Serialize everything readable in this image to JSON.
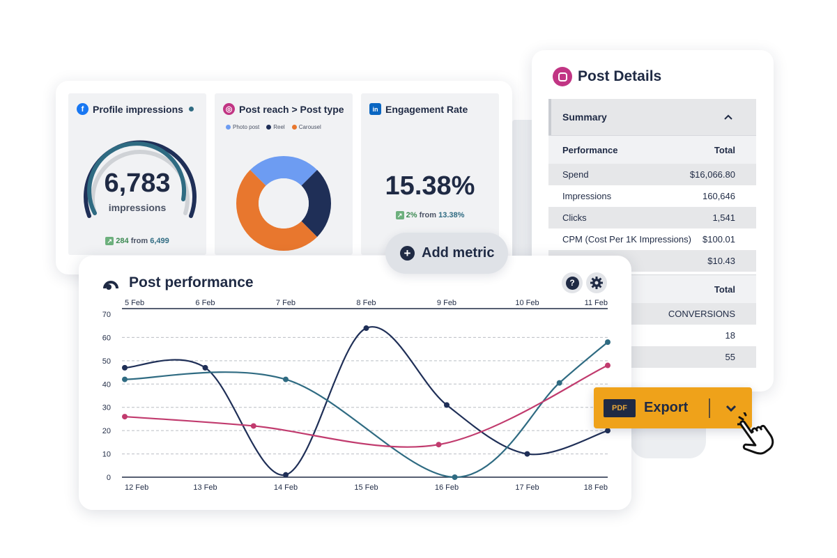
{
  "metrics": {
    "profile": {
      "title": "Profile impressions",
      "icon": "facebook-icon",
      "value": "6,783",
      "unit": "impressions",
      "delta": "284",
      "delta_from": "from",
      "prev": "6,499"
    },
    "reach": {
      "title": "Post reach > Post type",
      "icon": "instagram-icon",
      "legend": [
        "Photo post",
        "Reel",
        "Carousel"
      ],
      "colors": [
        "#6d9cf2",
        "#1f2f57",
        "#e8772e"
      ],
      "shares": [
        0.25,
        0.25,
        0.5
      ]
    },
    "engagement": {
      "title": "Engagement Rate",
      "icon": "linkedin-icon",
      "value": "15.38%",
      "delta": "2%",
      "delta_from": "from",
      "prev": "13.38%"
    }
  },
  "add_metric": {
    "label": "Add metric"
  },
  "details": {
    "title": "Post Details",
    "summary_label": "Summary",
    "header": {
      "left": "Performance",
      "right": "Total"
    },
    "rows": [
      {
        "label": "Spend",
        "value": "$16,066.80"
      },
      {
        "label": "Impressions",
        "value": "160,646"
      },
      {
        "label": "Clicks",
        "value": "1,541"
      },
      {
        "label": "CPM (Cost Per 1K Impressions)",
        "value": "$100.01"
      },
      {
        "label": "",
        "value": "$10.43"
      }
    ],
    "header2": {
      "right": "Total"
    },
    "rows2": [
      {
        "label": "",
        "value": "CONVERSIONS"
      },
      {
        "label": "",
        "value": "18"
      },
      {
        "label": "",
        "value": "55"
      }
    ]
  },
  "performance": {
    "title": "Post performance"
  },
  "export": {
    "pdf_label": "PDF",
    "label": "Export"
  },
  "chart_data": {
    "type": "line",
    "x_top": [
      "5 Feb",
      "6 Feb",
      "7 Feb",
      "8 Feb",
      "9 Feb",
      "10 Feb",
      "11 Feb"
    ],
    "x_bottom": [
      "12 Feb",
      "13 Feb",
      "14 Feb",
      "15 Feb",
      "16 Feb",
      "17 Feb",
      "18 Feb"
    ],
    "yticks": [
      0,
      10,
      20,
      30,
      40,
      50,
      60,
      70
    ],
    "ylim": [
      0,
      70
    ],
    "grid": true,
    "series": [
      {
        "color": "#1f2f57",
        "points": [
          [
            0,
            47
          ],
          [
            1,
            47
          ],
          [
            2,
            1
          ],
          [
            3,
            64
          ],
          [
            4,
            31
          ],
          [
            5,
            10
          ],
          [
            6,
            20
          ]
        ]
      },
      {
        "color": "#2f6b82",
        "points": [
          [
            0,
            42
          ],
          [
            2,
            42
          ],
          [
            4.1,
            0
          ],
          [
            5.4,
            40.5
          ],
          [
            6,
            58
          ]
        ]
      },
      {
        "color": "#c13b6e",
        "points": [
          [
            0,
            26
          ],
          [
            1.6,
            22
          ],
          [
            3.9,
            14
          ],
          [
            6,
            48
          ]
        ]
      }
    ]
  }
}
